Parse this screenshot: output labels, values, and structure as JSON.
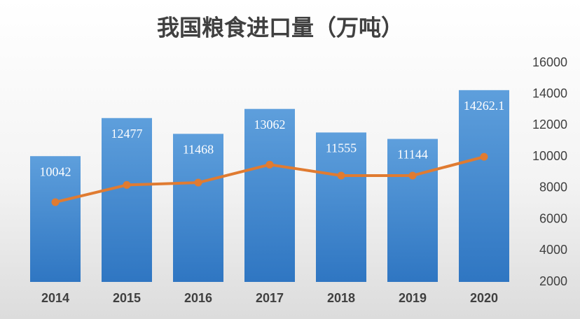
{
  "chart_data": {
    "type": "bar",
    "title": "我国粮食进口量（万吨）",
    "categories": [
      "2014",
      "2015",
      "2016",
      "2017",
      "2018",
      "2019",
      "2020"
    ],
    "series": [
      {
        "type": "bar",
        "color": "#3f86cf",
        "values": [
          10042,
          12477,
          11468,
          13062,
          11555,
          11144,
          14262.1
        ]
      },
      {
        "type": "line",
        "color": "#e07b31",
        "values": [
          7100,
          8200,
          8350,
          9500,
          8800,
          8800,
          10000
        ]
      }
    ],
    "ylim": [
      2000,
      16000
    ],
    "yticks": [
      2000,
      4000,
      6000,
      8000,
      10000,
      12000,
      14000,
      16000
    ],
    "grid": false
  }
}
